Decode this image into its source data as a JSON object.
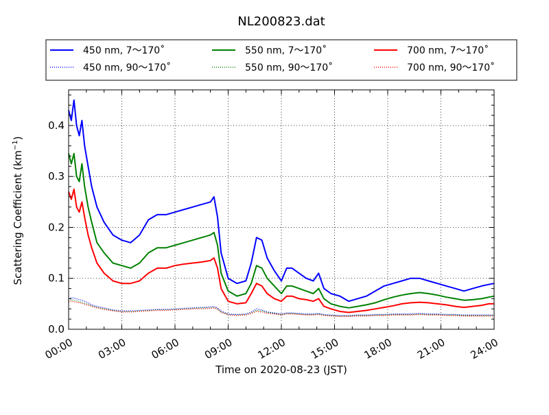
{
  "chart_data": {
    "type": "line",
    "title": "NL200823.dat",
    "xlabel": "Time on 2020-08-23 (JST)",
    "ylabel_main": "Scattering Coefficient (km",
    "ylabel_sup": "−1",
    "ylabel_tail": ")",
    "xlim": [
      0,
      24
    ],
    "ylim": [
      0,
      0.47
    ],
    "grid": true,
    "legend_position": "top",
    "x_ticks": [
      0,
      3,
      6,
      9,
      12,
      15,
      18,
      21,
      24
    ],
    "x_tick_labels": [
      "00:00",
      "03:00",
      "06:00",
      "09:00",
      "12:00",
      "15:00",
      "18:00",
      "21:00",
      "24:00"
    ],
    "y_ticks": [
      0,
      0.1,
      0.2,
      0.3,
      0.4
    ],
    "y_tick_labels": [
      "0.0",
      "0.1",
      "0.2",
      "0.3",
      "0.4"
    ],
    "x_sample": [
      0,
      0.15,
      0.3,
      0.45,
      0.6,
      0.75,
      0.9,
      1.1,
      1.3,
      1.6,
      2.0,
      2.5,
      3.0,
      3.5,
      4.0,
      4.5,
      5.0,
      5.5,
      6.0,
      6.5,
      7.0,
      7.5,
      8.0,
      8.2,
      8.4,
      8.6,
      9.0,
      9.5,
      10.0,
      10.3,
      10.6,
      10.9,
      11.2,
      11.6,
      12.0,
      12.3,
      12.6,
      13.0,
      13.4,
      13.8,
      14.1,
      14.4,
      14.8,
      15.3,
      15.8,
      16.3,
      16.8,
      17.3,
      17.8,
      18.3,
      18.8,
      19.3,
      19.8,
      20.3,
      20.8,
      21.3,
      21.8,
      22.3,
      22.8,
      23.3,
      23.7,
      24.0
    ],
    "series": [
      {
        "name": "450 nm, 7～170˚",
        "color": "#0000ff",
        "style": "solid",
        "values": [
          0.43,
          0.41,
          0.45,
          0.4,
          0.38,
          0.41,
          0.36,
          0.32,
          0.28,
          0.24,
          0.21,
          0.185,
          0.175,
          0.17,
          0.185,
          0.215,
          0.225,
          0.225,
          0.23,
          0.235,
          0.24,
          0.245,
          0.25,
          0.26,
          0.22,
          0.15,
          0.1,
          0.09,
          0.095,
          0.13,
          0.18,
          0.175,
          0.14,
          0.115,
          0.095,
          0.12,
          0.12,
          0.11,
          0.1,
          0.095,
          0.11,
          0.08,
          0.07,
          0.065,
          0.055,
          0.06,
          0.065,
          0.075,
          0.085,
          0.09,
          0.095,
          0.1,
          0.1,
          0.095,
          0.09,
          0.085,
          0.08,
          0.075,
          0.08,
          0.085,
          0.088,
          0.09
        ]
      },
      {
        "name": "550 nm, 7～170˚",
        "color": "#008000",
        "style": "solid",
        "values": [
          0.345,
          0.325,
          0.345,
          0.3,
          0.29,
          0.325,
          0.28,
          0.24,
          0.21,
          0.17,
          0.15,
          0.13,
          0.125,
          0.12,
          0.13,
          0.15,
          0.16,
          0.16,
          0.165,
          0.17,
          0.175,
          0.18,
          0.185,
          0.19,
          0.165,
          0.11,
          0.075,
          0.065,
          0.07,
          0.09,
          0.125,
          0.12,
          0.1,
          0.085,
          0.07,
          0.085,
          0.085,
          0.08,
          0.075,
          0.07,
          0.08,
          0.06,
          0.05,
          0.045,
          0.042,
          0.045,
          0.048,
          0.052,
          0.058,
          0.063,
          0.067,
          0.07,
          0.072,
          0.07,
          0.067,
          0.063,
          0.06,
          0.057,
          0.058,
          0.06,
          0.063,
          0.065
        ]
      },
      {
        "name": "700 nm, 7～170˚",
        "color": "#ff0000",
        "style": "solid",
        "values": [
          0.27,
          0.255,
          0.275,
          0.24,
          0.23,
          0.25,
          0.22,
          0.185,
          0.16,
          0.13,
          0.11,
          0.095,
          0.09,
          0.09,
          0.095,
          0.11,
          0.12,
          0.12,
          0.125,
          0.128,
          0.13,
          0.132,
          0.135,
          0.14,
          0.12,
          0.08,
          0.055,
          0.05,
          0.052,
          0.07,
          0.09,
          0.085,
          0.07,
          0.06,
          0.055,
          0.065,
          0.065,
          0.06,
          0.058,
          0.055,
          0.06,
          0.045,
          0.04,
          0.035,
          0.033,
          0.035,
          0.037,
          0.04,
          0.043,
          0.046,
          0.05,
          0.052,
          0.053,
          0.052,
          0.05,
          0.048,
          0.045,
          0.043,
          0.045,
          0.047,
          0.05,
          0.05
        ]
      },
      {
        "name": "450 nm, 90～170˚",
        "color": "#0000ff",
        "style": "dotted",
        "values": [
          0.06,
          0.062,
          0.061,
          0.06,
          0.058,
          0.057,
          0.055,
          0.052,
          0.048,
          0.045,
          0.042,
          0.038,
          0.036,
          0.036,
          0.037,
          0.038,
          0.039,
          0.039,
          0.04,
          0.041,
          0.042,
          0.043,
          0.044,
          0.045,
          0.042,
          0.036,
          0.03,
          0.029,
          0.03,
          0.034,
          0.04,
          0.038,
          0.034,
          0.032,
          0.03,
          0.032,
          0.032,
          0.031,
          0.03,
          0.03,
          0.031,
          0.029,
          0.028,
          0.027,
          0.027,
          0.028,
          0.028,
          0.029,
          0.029,
          0.03,
          0.03,
          0.03,
          0.031,
          0.03,
          0.03,
          0.029,
          0.029,
          0.028,
          0.028,
          0.028,
          0.028,
          0.028
        ]
      },
      {
        "name": "550 nm, 90～170˚",
        "color": "#008000",
        "style": "dotted",
        "values": [
          0.056,
          0.058,
          0.057,
          0.056,
          0.054,
          0.053,
          0.051,
          0.049,
          0.046,
          0.043,
          0.04,
          0.037,
          0.035,
          0.035,
          0.036,
          0.037,
          0.038,
          0.038,
          0.039,
          0.04,
          0.041,
          0.042,
          0.042,
          0.043,
          0.04,
          0.034,
          0.029,
          0.028,
          0.029,
          0.032,
          0.037,
          0.036,
          0.033,
          0.031,
          0.029,
          0.031,
          0.031,
          0.03,
          0.029,
          0.029,
          0.03,
          0.028,
          0.027,
          0.026,
          0.026,
          0.027,
          0.027,
          0.028,
          0.028,
          0.029,
          0.029,
          0.029,
          0.03,
          0.029,
          0.029,
          0.028,
          0.028,
          0.027,
          0.027,
          0.027,
          0.027,
          0.027
        ]
      },
      {
        "name": "700 nm, 90～170˚",
        "color": "#ff0000",
        "style": "dotted",
        "values": [
          0.053,
          0.055,
          0.054,
          0.053,
          0.052,
          0.051,
          0.049,
          0.047,
          0.045,
          0.042,
          0.039,
          0.036,
          0.034,
          0.034,
          0.035,
          0.036,
          0.037,
          0.037,
          0.038,
          0.039,
          0.04,
          0.04,
          0.041,
          0.042,
          0.039,
          0.033,
          0.028,
          0.027,
          0.028,
          0.031,
          0.035,
          0.034,
          0.031,
          0.03,
          0.028,
          0.03,
          0.03,
          0.029,
          0.028,
          0.028,
          0.029,
          0.027,
          0.026,
          0.025,
          0.025,
          0.026,
          0.026,
          0.027,
          0.027,
          0.028,
          0.028,
          0.028,
          0.029,
          0.028,
          0.028,
          0.027,
          0.027,
          0.026,
          0.026,
          0.026,
          0.026,
          0.026
        ]
      }
    ]
  }
}
